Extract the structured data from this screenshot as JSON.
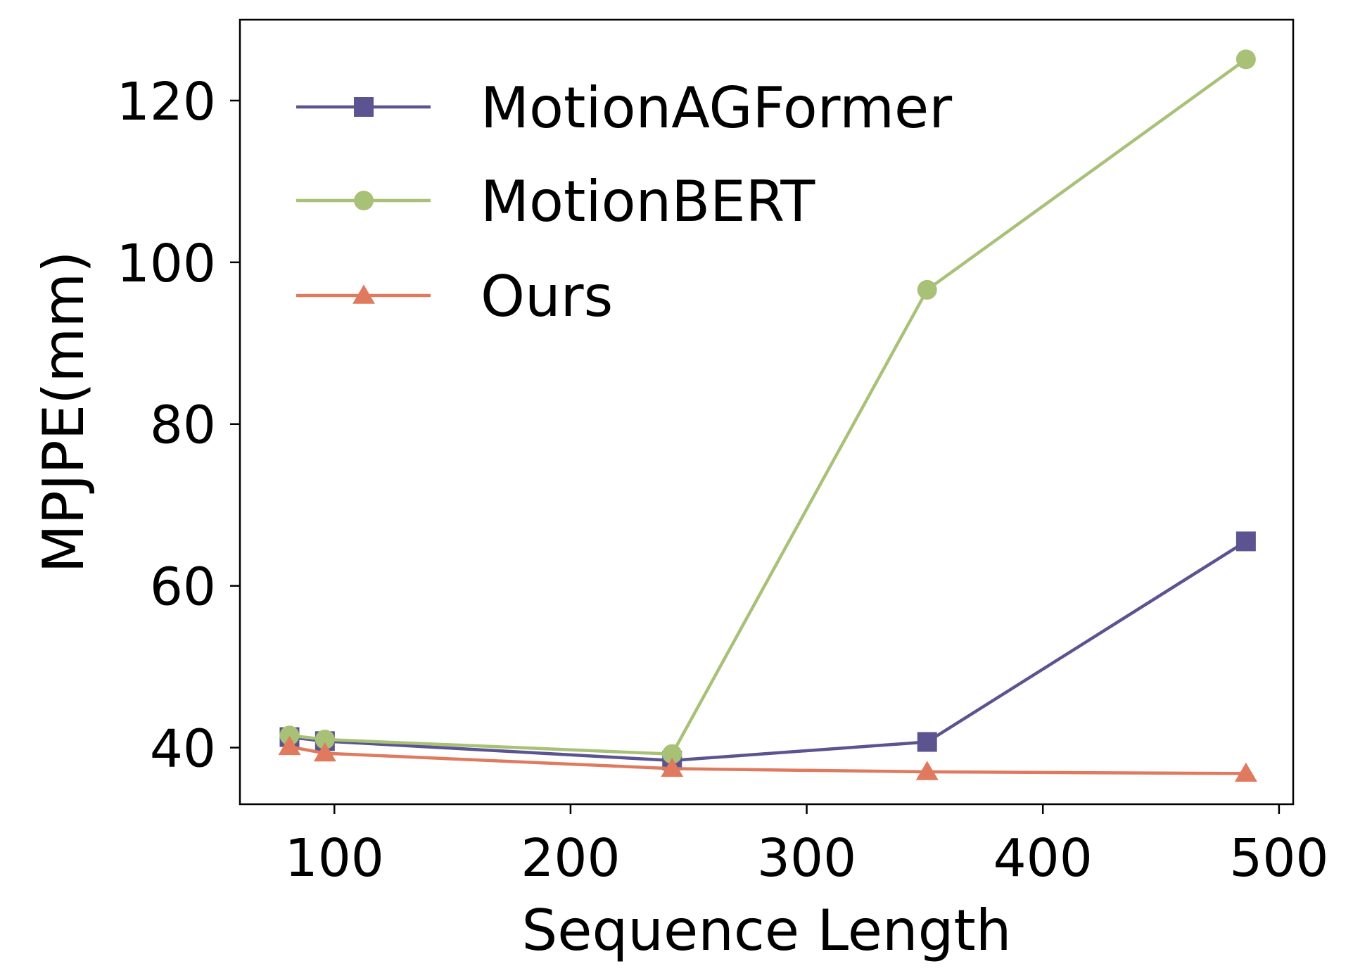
{
  "chart_data": {
    "type": "line",
    "title": "",
    "xlabel": "Sequence Length",
    "ylabel": "MPJPE(mm)",
    "xlim": [
      60,
      506
    ],
    "ylim": [
      33,
      130
    ],
    "xticks": [
      100,
      200,
      300,
      400,
      500
    ],
    "yticks": [
      40,
      60,
      80,
      100,
      120
    ],
    "grid": false,
    "legend_position": "top-left",
    "x": [
      81,
      96,
      243,
      351,
      486
    ],
    "series": [
      {
        "name": "MotionAGFormer",
        "color": "#5b5490",
        "marker": "square",
        "values": [
          41.3,
          40.8,
          38.4,
          40.7,
          65.5
        ]
      },
      {
        "name": "MotionBERT",
        "color": "#a8c177",
        "marker": "circle",
        "values": [
          41.5,
          41.0,
          39.2,
          96.6,
          125.1
        ]
      },
      {
        "name": "Ours",
        "color": "#e07a5f",
        "marker": "triangle",
        "values": [
          40.1,
          39.3,
          37.4,
          37.0,
          36.8
        ]
      }
    ]
  }
}
